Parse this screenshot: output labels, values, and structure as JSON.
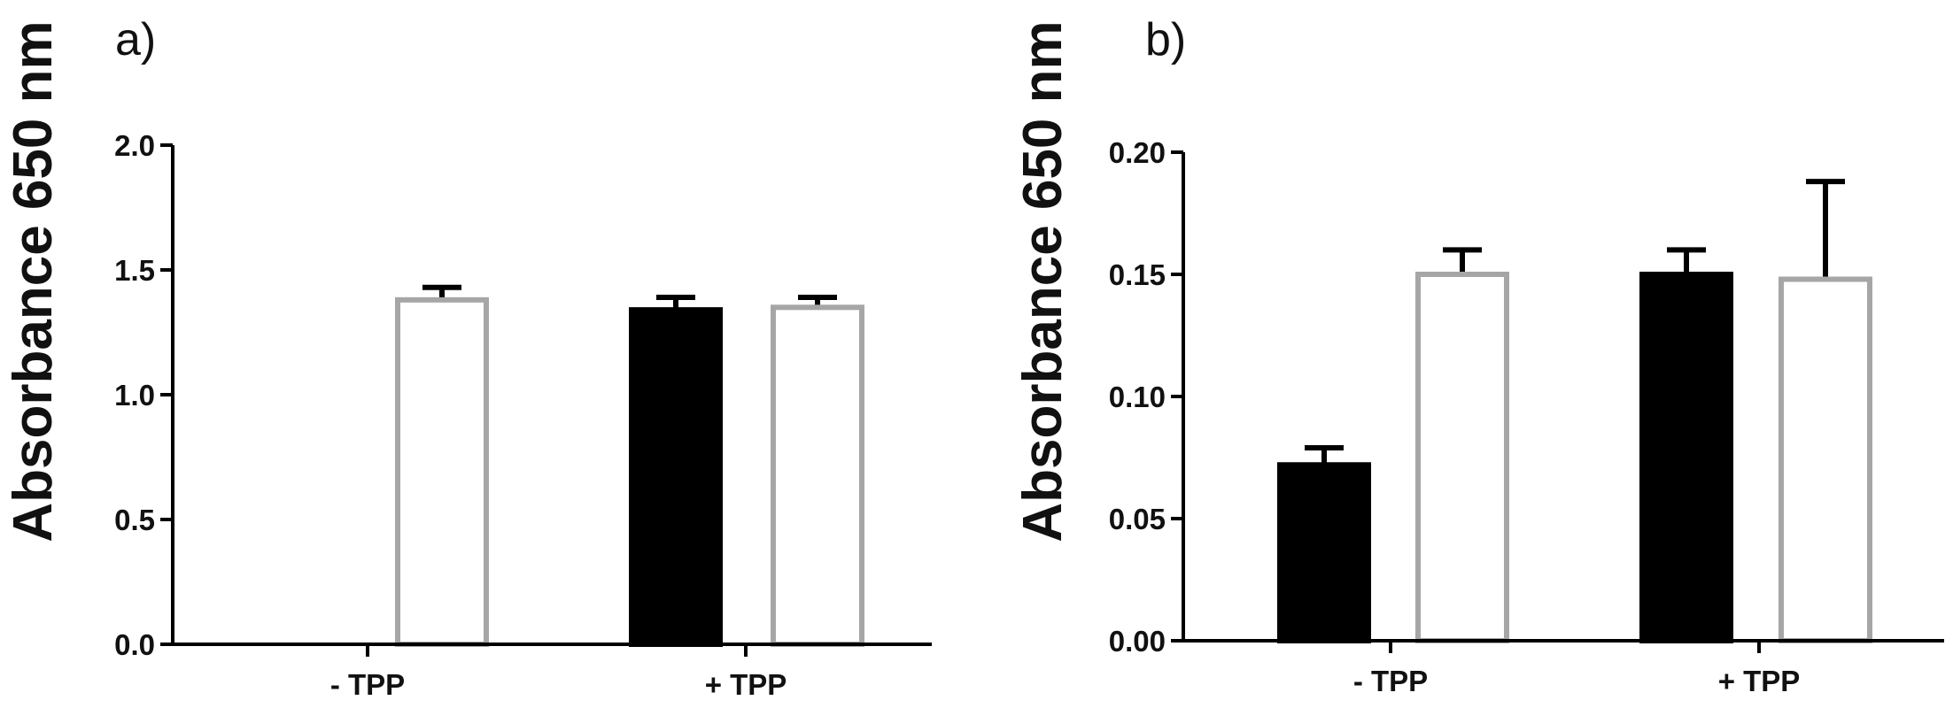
{
  "chart_data": [
    {
      "type": "bar",
      "panel": "a)",
      "ylabel": "Absorbance 650 nm",
      "ylim": [
        0,
        2.0
      ],
      "yticks": [
        "0.0",
        "0.5",
        "1.0",
        "1.5",
        "2.0"
      ],
      "categories": [
        "- TPP",
        "+ TPP"
      ],
      "series": [
        {
          "fill": "#000000",
          "stroke": "#000000",
          "values": [
            0,
            1.34
          ],
          "errors": [
            0,
            0.05
          ]
        },
        {
          "fill": "#ffffff",
          "stroke": "#a6a6a6",
          "values": [
            1.38,
            1.35
          ],
          "errors": [
            0.05,
            0.04
          ]
        }
      ]
    },
    {
      "type": "bar",
      "panel": "b)",
      "ylabel": "Absorbance 650 nm",
      "ylim": [
        0,
        0.2
      ],
      "yticks": [
        "0.00",
        "0.05",
        "0.10",
        "0.15",
        "0.20"
      ],
      "categories": [
        "- TPP",
        "+ TPP"
      ],
      "series": [
        {
          "fill": "#000000",
          "stroke": "#000000",
          "values": [
            0.072,
            0.15
          ],
          "errors": [
            0.007,
            0.01
          ]
        },
        {
          "fill": "#ffffff",
          "stroke": "#a6a6a6",
          "values": [
            0.15,
            0.148
          ],
          "errors": [
            0.01,
            0.04
          ]
        }
      ]
    }
  ]
}
